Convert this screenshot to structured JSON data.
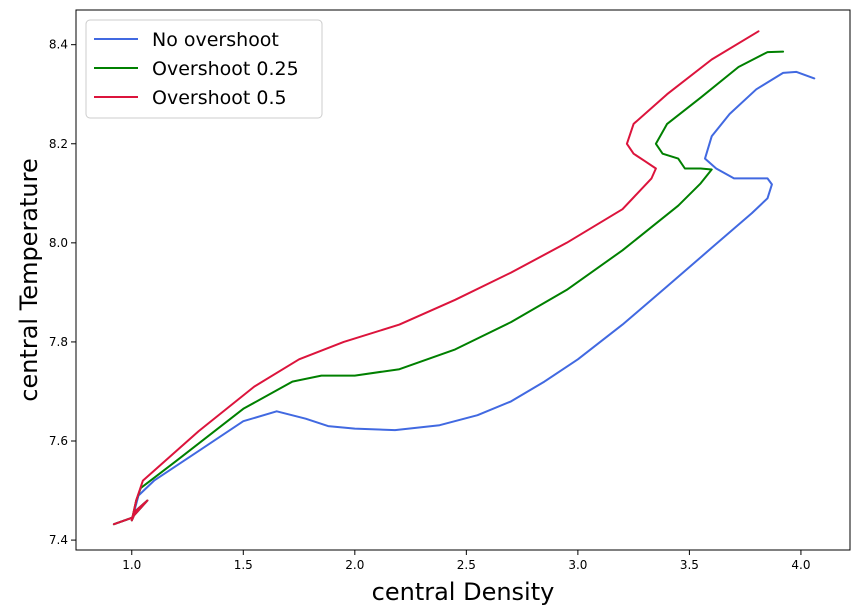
{
  "chart_data": {
    "type": "line",
    "title": "",
    "xlabel": "central Density",
    "ylabel": "central Temperature",
    "xlim": [
      0.75,
      4.22
    ],
    "ylim": [
      7.38,
      8.47
    ],
    "xticks": [
      "1.0",
      "1.5",
      "2.0",
      "2.5",
      "3.0",
      "3.5",
      "4.0"
    ],
    "yticks": [
      "7.4",
      "7.6",
      "7.8",
      "8.0",
      "8.2",
      "8.4"
    ],
    "grid": false,
    "legend_position": "top-left",
    "series": [
      {
        "name": "No overshoot",
        "color": "#4169e1",
        "points": [
          [
            0.92,
            7.432
          ],
          [
            1.0,
            7.445
          ],
          [
            1.07,
            7.48
          ],
          [
            1.02,
            7.46
          ],
          [
            1.0,
            7.44
          ],
          [
            1.03,
            7.49
          ],
          [
            1.1,
            7.52
          ],
          [
            1.3,
            7.58
          ],
          [
            1.5,
            7.64
          ],
          [
            1.65,
            7.66
          ],
          [
            1.78,
            7.645
          ],
          [
            1.88,
            7.63
          ],
          [
            2.0,
            7.625
          ],
          [
            2.18,
            7.622
          ],
          [
            2.38,
            7.632
          ],
          [
            2.55,
            7.652
          ],
          [
            2.7,
            7.68
          ],
          [
            2.85,
            7.72
          ],
          [
            3.0,
            7.765
          ],
          [
            3.2,
            7.835
          ],
          [
            3.4,
            7.912
          ],
          [
            3.6,
            7.99
          ],
          [
            3.78,
            8.06
          ],
          [
            3.85,
            8.09
          ],
          [
            3.87,
            8.118
          ],
          [
            3.85,
            8.13
          ],
          [
            3.77,
            8.13
          ],
          [
            3.7,
            8.13
          ],
          [
            3.62,
            8.15
          ],
          [
            3.57,
            8.17
          ],
          [
            3.6,
            8.215
          ],
          [
            3.68,
            8.26
          ],
          [
            3.8,
            8.31
          ],
          [
            3.92,
            8.343
          ],
          [
            3.98,
            8.345
          ],
          [
            4.06,
            8.332
          ]
        ]
      },
      {
        "name": "Overshoot 0.25",
        "color": "#008000",
        "points": [
          [
            0.92,
            7.432
          ],
          [
            1.0,
            7.445
          ],
          [
            1.07,
            7.48
          ],
          [
            1.02,
            7.46
          ],
          [
            1.0,
            7.44
          ],
          [
            1.02,
            7.48
          ],
          [
            1.04,
            7.505
          ],
          [
            1.2,
            7.56
          ],
          [
            1.5,
            7.665
          ],
          [
            1.72,
            7.72
          ],
          [
            1.85,
            7.732
          ],
          [
            2.0,
            7.732
          ],
          [
            2.2,
            7.745
          ],
          [
            2.45,
            7.785
          ],
          [
            2.7,
            7.84
          ],
          [
            2.95,
            7.905
          ],
          [
            3.2,
            7.985
          ],
          [
            3.45,
            8.075
          ],
          [
            3.55,
            8.12
          ],
          [
            3.6,
            8.148
          ],
          [
            3.55,
            8.15
          ],
          [
            3.48,
            8.15
          ],
          [
            3.45,
            8.17
          ],
          [
            3.38,
            8.18
          ],
          [
            3.35,
            8.2
          ],
          [
            3.4,
            8.24
          ],
          [
            3.55,
            8.293
          ],
          [
            3.72,
            8.355
          ],
          [
            3.85,
            8.385
          ],
          [
            3.92,
            8.386
          ]
        ]
      },
      {
        "name": "Overshoot 0.5",
        "color": "#dc143c",
        "points": [
          [
            0.92,
            7.432
          ],
          [
            1.0,
            7.445
          ],
          [
            1.07,
            7.48
          ],
          [
            1.02,
            7.46
          ],
          [
            1.0,
            7.44
          ],
          [
            1.02,
            7.48
          ],
          [
            1.05,
            7.52
          ],
          [
            1.3,
            7.62
          ],
          [
            1.55,
            7.71
          ],
          [
            1.75,
            7.765
          ],
          [
            1.95,
            7.8
          ],
          [
            2.2,
            7.835
          ],
          [
            2.45,
            7.885
          ],
          [
            2.7,
            7.94
          ],
          [
            2.95,
            8.0
          ],
          [
            3.2,
            8.068
          ],
          [
            3.33,
            8.13
          ],
          [
            3.35,
            8.15
          ],
          [
            3.3,
            8.165
          ],
          [
            3.25,
            8.18
          ],
          [
            3.22,
            8.2
          ],
          [
            3.25,
            8.24
          ],
          [
            3.4,
            8.3
          ],
          [
            3.6,
            8.37
          ],
          [
            3.81,
            8.427
          ]
        ]
      }
    ]
  }
}
